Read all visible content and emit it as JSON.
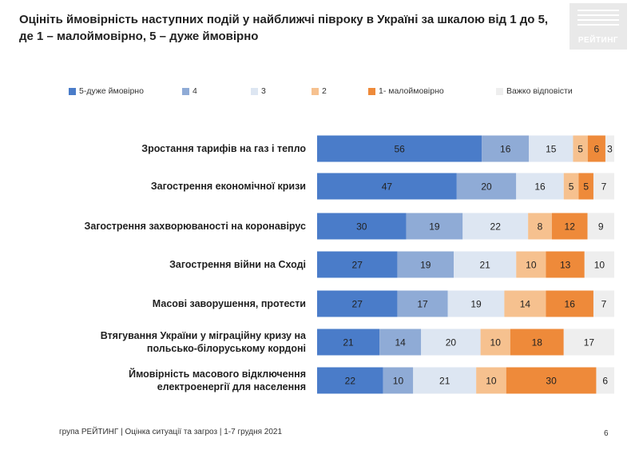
{
  "title": "Оцініть ймовірність наступних подій у найближчі півроку в Україні за шкалою від 1 до 5, де 1 – малоймовірно, 5 – дуже ймовірно",
  "logo": {
    "text": "РЕЙТИНГ",
    "icon": "rating-logo-icon"
  },
  "footer": "група РЕЙТИНГ |  Оцінка ситуації та загроз  | 1-7 грудня 2021",
  "page_number": "6",
  "chart_data": {
    "type": "bar",
    "orientation": "horizontal",
    "stacked": true,
    "legend_position": "top",
    "grid": false,
    "categories": [
      "Зростання тарифів на газ і тепло",
      "Загострення економічної кризи",
      "Загострення захворюваності на коронавірус",
      "Загострення війни на Сході",
      "Масові заворушення, протести",
      "Втягування України у міграційну кризу на польсько-білоруському кордоні",
      "Ймовірність масового відключення електроенергії для населення"
    ],
    "series": [
      {
        "name": "5-дуже ймовірно",
        "color": "#4a7cc9",
        "values": [
          56,
          47,
          30,
          27,
          27,
          21,
          22
        ]
      },
      {
        "name": "4",
        "color": "#8fabd6",
        "values": [
          16,
          20,
          19,
          19,
          17,
          14,
          10
        ]
      },
      {
        "name": "3",
        "color": "#dde6f2",
        "values": [
          15,
          16,
          22,
          21,
          19,
          20,
          21
        ]
      },
      {
        "name": "2",
        "color": "#f6c18f",
        "values": [
          5,
          5,
          8,
          10,
          14,
          10,
          10
        ]
      },
      {
        "name": "1- малоймовірно",
        "color": "#ee8a3a",
        "values": [
          6,
          5,
          12,
          13,
          16,
          18,
          30
        ]
      },
      {
        "name": "Важко відповісти",
        "color": "#eeeeee",
        "values": [
          3,
          7,
          9,
          10,
          7,
          17,
          6
        ]
      }
    ]
  }
}
